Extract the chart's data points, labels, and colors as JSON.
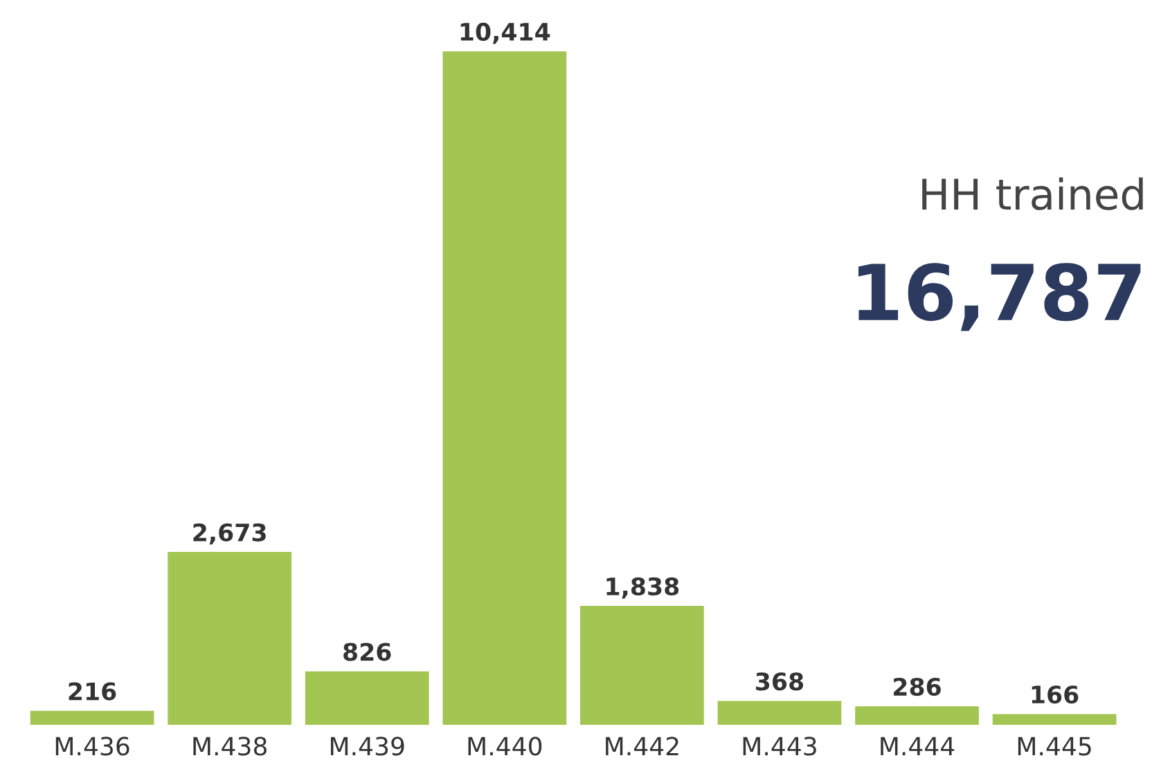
{
  "chart_data": {
    "type": "bar",
    "categories": [
      "M.436",
      "M.438",
      "M.439",
      "M.440",
      "M.442",
      "M.443",
      "M.444",
      "M.445"
    ],
    "values": [
      216,
      2673,
      826,
      10414,
      1838,
      368,
      286,
      166
    ],
    "color": "#a3c552",
    "value_labels": [
      "216",
      "2,673",
      "826",
      "10,414",
      "1,838",
      "368",
      "286",
      "166"
    ],
    "grid": false,
    "legend": false,
    "annotations": [
      "HH trained",
      "16,787"
    ]
  }
}
